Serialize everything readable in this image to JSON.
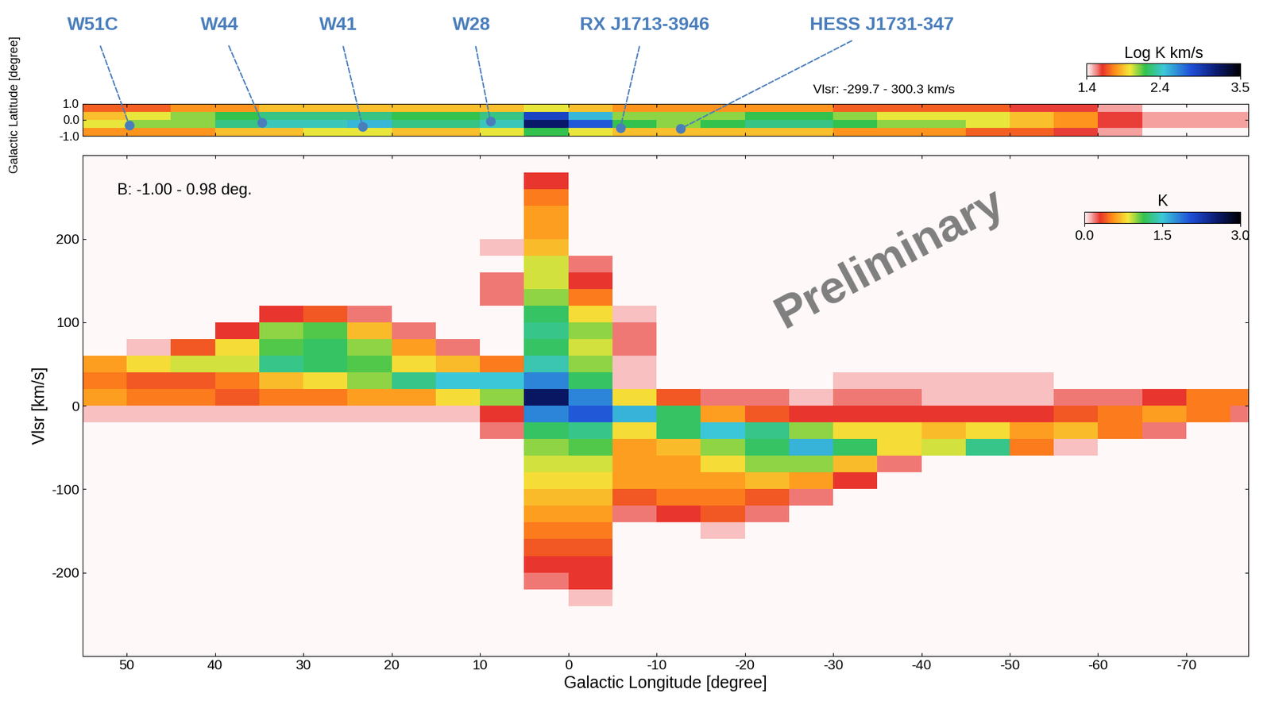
{
  "chart_data": [
    {
      "type": "heatmap",
      "subtitle": "Vlsr: -299.7 - 300.3 km/s",
      "ylabel": "Galactic Latitude [degree]",
      "x_edges": [
        55,
        50,
        45,
        40,
        35,
        30,
        25,
        20,
        15,
        10,
        5,
        0,
        -5,
        -10,
        -15,
        -20,
        -25,
        -30,
        -35,
        -40,
        -45,
        -50,
        -55,
        -60,
        -65,
        -70,
        -75,
        -80
      ],
      "y_edges": [
        1.0,
        0.5,
        0.0,
        -0.5,
        -1.0
      ],
      "cells": [
        [
          1.7,
          1.7,
          1.8,
          1.8,
          1.9,
          1.9,
          1.9,
          1.9,
          1.9,
          1.9,
          2.0,
          1.9,
          1.8,
          1.8,
          1.8,
          1.8,
          1.8,
          1.7,
          1.7,
          1.7,
          1.7,
          1.6,
          1.6,
          1.5,
          1.4,
          1.4,
          1.4
        ],
        [
          1.9,
          2.0,
          2.1,
          2.2,
          2.3,
          2.3,
          2.3,
          2.2,
          2.2,
          2.3,
          2.9,
          2.5,
          2.1,
          2.1,
          2.1,
          2.2,
          2.2,
          2.1,
          2.0,
          2.0,
          2.0,
          1.9,
          1.8,
          1.6,
          1.5,
          1.5,
          1.5
        ],
        [
          2.0,
          2.1,
          2.1,
          2.3,
          2.4,
          2.4,
          2.5,
          2.3,
          2.3,
          2.4,
          3.2,
          2.8,
          2.2,
          2.1,
          2.2,
          2.3,
          2.3,
          2.2,
          2.1,
          2.1,
          2.0,
          1.9,
          1.8,
          1.6,
          1.5,
          1.5,
          1.5
        ],
        [
          1.8,
          1.8,
          1.8,
          1.9,
          1.9,
          2.0,
          2.0,
          1.9,
          1.9,
          2.0,
          2.2,
          2.0,
          1.9,
          1.9,
          1.9,
          1.9,
          1.9,
          1.8,
          1.8,
          1.8,
          1.7,
          1.7,
          1.6,
          1.5,
          1.4,
          1.4,
          1.4
        ]
      ],
      "xlim": [
        55,
        -77
      ],
      "ylim": [
        -1,
        1
      ],
      "xticks": [
        50,
        40,
        30,
        20,
        10,
        0,
        -10,
        -20,
        -30,
        -40,
        -50,
        -60,
        -70
      ],
      "yticks": [
        {
          "value": 1,
          "label": "1.0"
        },
        {
          "value": 0,
          "label": "0.0"
        },
        {
          "value": -1,
          "label": "-1.0"
        }
      ],
      "tick_labels": "y",
      "colorbar": {
        "label": "Log K km/s",
        "range": [
          1.4,
          3.5
        ],
        "ticks": [
          1.4,
          2.4,
          3.5
        ]
      },
      "annotations": [
        {
          "text": "W51C",
          "x": 49.7,
          "y": -0.35
        },
        {
          "text": "W44",
          "x": 34.7,
          "y": -0.15
        },
        {
          "text": "W41",
          "x": 23.3,
          "y": -0.4
        },
        {
          "text": "W28",
          "x": 8.8,
          "y": -0.1
        },
        {
          "text": "RX J1713-3946",
          "x": -5.9,
          "y": -0.5
        },
        {
          "text": "HESS J1731-347",
          "x": -12.7,
          "y": -0.55
        }
      ]
    },
    {
      "type": "heatmap",
      "subtitle": "B: -1.00 - 0.98 deg.",
      "xlabel": "Galactic Longitude [degree]",
      "ylabel": "Vlsr [km/s]",
      "watermark": "Preliminary",
      "x_edges": [
        55,
        50,
        45,
        40,
        35,
        30,
        25,
        20,
        15,
        10,
        5,
        0,
        -5,
        -10,
        -15,
        -20,
        -25,
        -30,
        -35,
        -40,
        -45,
        -50,
        -55,
        -60,
        -65,
        -70,
        -75,
        -80
      ],
      "y_edges": [
        300,
        280,
        260,
        240,
        220,
        200,
        180,
        160,
        140,
        120,
        100,
        80,
        60,
        40,
        20,
        0,
        -20,
        -40,
        -60,
        -80,
        -100,
        -120,
        -140,
        -160,
        -180,
        -200,
        -220,
        -240,
        -260,
        -280,
        -300
      ],
      "cells": [
        [
          0,
          0,
          0,
          0,
          0,
          0,
          0,
          0,
          0,
          0,
          0,
          0,
          0,
          0,
          0,
          0,
          0,
          0,
          0,
          0,
          0,
          0,
          0,
          0,
          0,
          0,
          0
        ],
        [
          0,
          0,
          0,
          0,
          0,
          0,
          0,
          0,
          0,
          0,
          0.3,
          0,
          0,
          0,
          0,
          0,
          0,
          0,
          0,
          0,
          0,
          0,
          0,
          0,
          0,
          0,
          0
        ],
        [
          0,
          0,
          0,
          0,
          0,
          0,
          0,
          0,
          0,
          0,
          0.5,
          0,
          0,
          0,
          0,
          0,
          0,
          0,
          0,
          0,
          0,
          0,
          0,
          0,
          0,
          0,
          0
        ],
        [
          0,
          0,
          0,
          0,
          0,
          0,
          0,
          0,
          0,
          0,
          0.6,
          0,
          0,
          0,
          0,
          0,
          0,
          0,
          0,
          0,
          0,
          0,
          0,
          0,
          0,
          0,
          0
        ],
        [
          0,
          0,
          0,
          0,
          0,
          0,
          0,
          0,
          0,
          0,
          0.6,
          0,
          0,
          0,
          0,
          0,
          0,
          0,
          0,
          0,
          0,
          0,
          0,
          0,
          0,
          0,
          0
        ],
        [
          0,
          0,
          0,
          0,
          0,
          0,
          0,
          0,
          0,
          0.1,
          0.7,
          0,
          0,
          0,
          0,
          0,
          0,
          0,
          0,
          0,
          0,
          0,
          0,
          0,
          0,
          0,
          0
        ],
        [
          0,
          0,
          0,
          0,
          0,
          0,
          0,
          0,
          0,
          0,
          0.9,
          0.2,
          0,
          0,
          0,
          0,
          0,
          0,
          0,
          0,
          0,
          0,
          0,
          0,
          0,
          0,
          0
        ],
        [
          0,
          0,
          0,
          0,
          0,
          0,
          0,
          0,
          0,
          0.2,
          0.9,
          0.3,
          0,
          0,
          0,
          0,
          0,
          0,
          0,
          0,
          0,
          0,
          0,
          0,
          0,
          0,
          0
        ],
        [
          0,
          0,
          0,
          0,
          0,
          0,
          0,
          0,
          0,
          0.2,
          1.0,
          0.5,
          0,
          0,
          0,
          0,
          0,
          0,
          0,
          0,
          0,
          0,
          0,
          0,
          0,
          0,
          0
        ],
        [
          0,
          0,
          0,
          0,
          0.3,
          0.4,
          0.2,
          0,
          0,
          0,
          1.2,
          0.8,
          0.1,
          0,
          0,
          0,
          0,
          0,
          0,
          0,
          0,
          0,
          0,
          0,
          0,
          0,
          0
        ],
        [
          0,
          0,
          0,
          0.3,
          1.0,
          1.1,
          0.7,
          0.2,
          0,
          0,
          1.3,
          1.0,
          0.2,
          0,
          0,
          0,
          0,
          0,
          0,
          0,
          0,
          0,
          0,
          0,
          0,
          0,
          0
        ],
        [
          0,
          0.1,
          0.4,
          0.8,
          1.1,
          1.2,
          1.0,
          0.6,
          0.2,
          0,
          1.2,
          0.9,
          0.2,
          0,
          0,
          0,
          0,
          0,
          0,
          0,
          0,
          0,
          0,
          0,
          0,
          0,
          0
        ],
        [
          0.6,
          0.8,
          0.9,
          0.9,
          1.3,
          1.2,
          1.1,
          0.8,
          0.7,
          0.5,
          1.4,
          1.0,
          0.1,
          0,
          0,
          0,
          0,
          0,
          0,
          0,
          0,
          0,
          0,
          0,
          0,
          0,
          0
        ],
        [
          0.5,
          0.4,
          0.4,
          0.5,
          0.7,
          0.8,
          1.0,
          1.3,
          1.5,
          1.5,
          1.8,
          1.2,
          0.1,
          0,
          0,
          0,
          0,
          0.1,
          0.1,
          0.1,
          0.1,
          0.1,
          0,
          0,
          0,
          0,
          0
        ],
        [
          0.6,
          0.5,
          0.5,
          0.4,
          0.5,
          0.5,
          0.6,
          0.6,
          0.8,
          1.0,
          2.6,
          1.8,
          0.8,
          0.4,
          0.2,
          0.2,
          0.1,
          0.2,
          0.2,
          0.1,
          0.1,
          0.1,
          0.2,
          0.2,
          0.3,
          0.5,
          0.5
        ],
        [
          0.1,
          0.1,
          0.1,
          0.1,
          0.1,
          0.1,
          0.1,
          0.1,
          0.1,
          0.3,
          1.8,
          2.0,
          1.6,
          1.2,
          0.6,
          0.4,
          0.3,
          0.3,
          0.3,
          0.3,
          0.3,
          0.3,
          0.4,
          0.5,
          0.6,
          0.5,
          0.2
        ],
        [
          0,
          0,
          0,
          0,
          0,
          0,
          0,
          0,
          0,
          0.2,
          1.2,
          1.3,
          0.8,
          1.2,
          1.5,
          1.3,
          1.0,
          0.8,
          0.8,
          0.7,
          0.8,
          0.6,
          0.7,
          0.5,
          0.2,
          0,
          0
        ],
        [
          0,
          0,
          0,
          0,
          0,
          0,
          0,
          0,
          0,
          0,
          1.0,
          1.1,
          0.6,
          0.7,
          1.0,
          1.2,
          1.6,
          1.2,
          0.8,
          0.9,
          1.3,
          0.5,
          0.1,
          0,
          0,
          0,
          0
        ],
        [
          0,
          0,
          0,
          0,
          0,
          0,
          0,
          0,
          0,
          0,
          0.9,
          0.9,
          0.6,
          0.6,
          0.8,
          1.0,
          1.0,
          0.7,
          0.2,
          0,
          0,
          0,
          0,
          0,
          0,
          0,
          0
        ],
        [
          0,
          0,
          0,
          0,
          0,
          0,
          0,
          0,
          0,
          0,
          0.8,
          0.8,
          0.6,
          0.6,
          0.6,
          0.7,
          0.6,
          0.3,
          0,
          0,
          0,
          0,
          0,
          0,
          0,
          0,
          0
        ],
        [
          0,
          0,
          0,
          0,
          0,
          0,
          0,
          0,
          0,
          0,
          0.7,
          0.7,
          0.4,
          0.5,
          0.5,
          0.4,
          0.2,
          0,
          0,
          0,
          0,
          0,
          0,
          0,
          0,
          0,
          0
        ],
        [
          0,
          0,
          0,
          0,
          0,
          0,
          0,
          0,
          0,
          0,
          0.6,
          0.6,
          0.2,
          0.3,
          0.4,
          0.2,
          0,
          0,
          0,
          0,
          0,
          0,
          0,
          0,
          0,
          0,
          0
        ],
        [
          0,
          0,
          0,
          0,
          0,
          0,
          0,
          0,
          0,
          0,
          0.5,
          0.5,
          0,
          0,
          0.1,
          0,
          0,
          0,
          0,
          0,
          0,
          0,
          0,
          0,
          0,
          0,
          0
        ],
        [
          0,
          0,
          0,
          0,
          0,
          0,
          0,
          0,
          0,
          0,
          0.4,
          0.4,
          0,
          0,
          0,
          0,
          0,
          0,
          0,
          0,
          0,
          0,
          0,
          0,
          0,
          0,
          0
        ],
        [
          0,
          0,
          0,
          0,
          0,
          0,
          0,
          0,
          0,
          0,
          0.3,
          0.3,
          0,
          0,
          0,
          0,
          0,
          0,
          0,
          0,
          0,
          0,
          0,
          0,
          0,
          0,
          0
        ],
        [
          0,
          0,
          0,
          0,
          0,
          0,
          0,
          0,
          0,
          0,
          0.2,
          0.3,
          0,
          0,
          0,
          0,
          0,
          0,
          0,
          0,
          0,
          0,
          0,
          0,
          0,
          0,
          0
        ],
        [
          0,
          0,
          0,
          0,
          0,
          0,
          0,
          0,
          0,
          0,
          0,
          0.1,
          0,
          0,
          0,
          0,
          0,
          0,
          0,
          0,
          0,
          0,
          0,
          0,
          0,
          0,
          0
        ],
        [
          0,
          0,
          0,
          0,
          0,
          0,
          0,
          0,
          0,
          0,
          0,
          0,
          0,
          0,
          0,
          0,
          0,
          0,
          0,
          0,
          0,
          0,
          0,
          0,
          0,
          0,
          0
        ],
        [
          0,
          0,
          0,
          0,
          0,
          0,
          0,
          0,
          0,
          0,
          0,
          0,
          0,
          0,
          0,
          0,
          0,
          0,
          0,
          0,
          0,
          0,
          0,
          0,
          0,
          0,
          0
        ],
        [
          0,
          0,
          0,
          0,
          0,
          0,
          0,
          0,
          0,
          0,
          0,
          0,
          0,
          0,
          0,
          0,
          0,
          0,
          0,
          0,
          0,
          0,
          0,
          0,
          0,
          0,
          0
        ]
      ],
      "xlim": [
        55,
        -77
      ],
      "ylim": [
        -300,
        300
      ],
      "xticks": [
        50,
        40,
        30,
        20,
        10,
        0,
        -10,
        -20,
        -30,
        -40,
        -50,
        -60,
        -70
      ],
      "yticks": [
        -200,
        -100,
        0,
        100,
        200
      ],
      "colorbar": {
        "label": "K",
        "range": [
          0,
          3
        ],
        "ticks": [
          {
            "value": 0,
            "label": "0.0"
          },
          1.5,
          {
            "value": 3,
            "label": "3.0"
          }
        ]
      }
    }
  ]
}
